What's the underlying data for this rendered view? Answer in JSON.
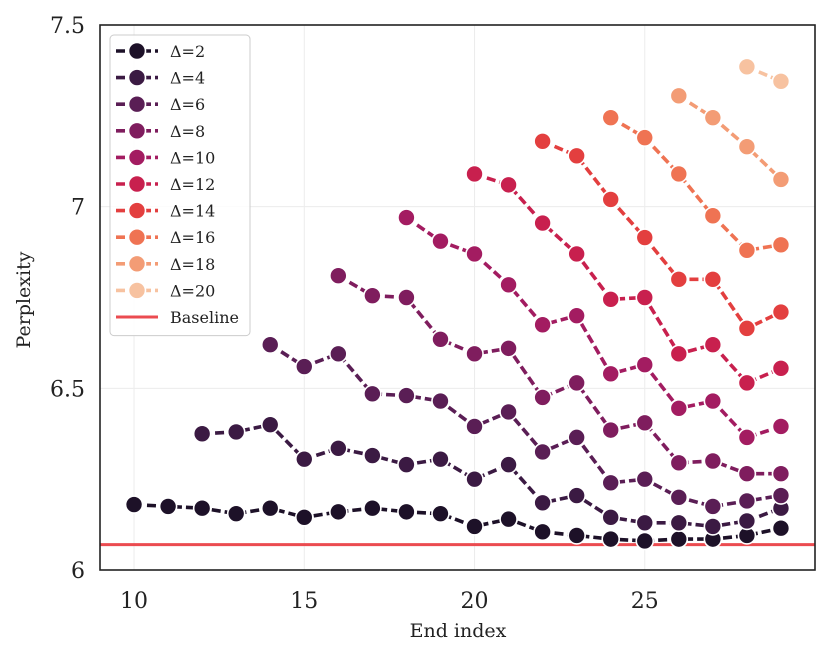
{
  "chart_data": {
    "type": "line",
    "title": "",
    "xlabel": "End index",
    "ylabel": "Perplexity",
    "xlim": [
      9,
      30
    ],
    "ylim": [
      6.0,
      7.5
    ],
    "xticks": [
      10,
      15,
      20,
      25
    ],
    "xtick_labels": [
      "10",
      "15",
      "20",
      "25"
    ],
    "yticks": [
      6.0,
      6.5,
      7.0,
      7.5
    ],
    "ytick_labels": [
      "6",
      "6.5",
      "7",
      "7.5"
    ],
    "grid": true,
    "legend_position": "top-left",
    "series": [
      {
        "name": "Δ=2",
        "color": "#1d1128",
        "x": [
          10,
          11,
          12,
          13,
          14,
          15,
          16,
          17,
          18,
          19,
          20,
          21,
          22,
          23,
          24,
          25,
          26,
          27,
          28,
          29
        ],
        "values": [
          6.18,
          6.175,
          6.17,
          6.155,
          6.17,
          6.145,
          6.16,
          6.17,
          6.16,
          6.155,
          6.12,
          6.14,
          6.105,
          6.095,
          6.085,
          6.08,
          6.085,
          6.085,
          6.095,
          6.115
        ]
      },
      {
        "name": "Δ=4",
        "color": "#3b1a43",
        "x": [
          12,
          13,
          14,
          15,
          16,
          17,
          18,
          19,
          20,
          21,
          22,
          23,
          24,
          25,
          26,
          27,
          28,
          29
        ],
        "values": [
          6.375,
          6.38,
          6.4,
          6.305,
          6.335,
          6.315,
          6.29,
          6.305,
          6.25,
          6.29,
          6.185,
          6.205,
          6.145,
          6.13,
          6.13,
          6.12,
          6.135,
          6.17
        ]
      },
      {
        "name": "Δ=6",
        "color": "#5a1e55",
        "x": [
          14,
          15,
          16,
          17,
          18,
          19,
          20,
          21,
          22,
          23,
          24,
          25,
          26,
          27,
          28,
          29
        ],
        "values": [
          6.62,
          6.56,
          6.595,
          6.485,
          6.48,
          6.465,
          6.395,
          6.435,
          6.325,
          6.365,
          6.24,
          6.25,
          6.2,
          6.175,
          6.19,
          6.205
        ]
      },
      {
        "name": "Δ=8",
        "color": "#7f1d5e",
        "x": [
          16,
          17,
          18,
          19,
          20,
          21,
          22,
          23,
          24,
          25,
          26,
          27,
          28,
          29
        ],
        "values": [
          6.81,
          6.755,
          6.75,
          6.635,
          6.595,
          6.61,
          6.475,
          6.515,
          6.385,
          6.405,
          6.295,
          6.3,
          6.265,
          6.265
        ]
      },
      {
        "name": "Δ=10",
        "color": "#a31c61",
        "x": [
          18,
          19,
          20,
          21,
          22,
          23,
          24,
          25,
          26,
          27,
          28,
          29
        ],
        "values": [
          6.97,
          6.905,
          6.87,
          6.785,
          6.675,
          6.7,
          6.54,
          6.565,
          6.445,
          6.465,
          6.365,
          6.395
        ]
      },
      {
        "name": "Δ=12",
        "color": "#c8204e",
        "x": [
          20,
          21,
          22,
          23,
          24,
          25,
          26,
          27,
          28,
          29
        ],
        "values": [
          7.09,
          7.06,
          6.955,
          6.87,
          6.745,
          6.75,
          6.595,
          6.62,
          6.515,
          6.555
        ]
      },
      {
        "name": "Δ=14",
        "color": "#e33f3f",
        "x": [
          22,
          23,
          24,
          25,
          26,
          27,
          28,
          29
        ],
        "values": [
          7.18,
          7.14,
          7.02,
          6.915,
          6.8,
          6.8,
          6.665,
          6.71
        ]
      },
      {
        "name": "Δ=16",
        "color": "#ef7353",
        "x": [
          24,
          25,
          26,
          27,
          28,
          29
        ],
        "values": [
          7.245,
          7.19,
          7.09,
          6.975,
          6.88,
          6.895
        ]
      },
      {
        "name": "Δ=18",
        "color": "#f39c75",
        "x": [
          26,
          27,
          28,
          29
        ],
        "values": [
          7.305,
          7.245,
          7.165,
          7.075
        ]
      },
      {
        "name": "Δ=20",
        "color": "#f7c2a0",
        "x": [
          28,
          29
        ],
        "values": [
          7.385,
          7.345
        ]
      }
    ],
    "baseline": {
      "name": "Baseline",
      "value": 6.07,
      "color": "#eb4b50"
    }
  }
}
